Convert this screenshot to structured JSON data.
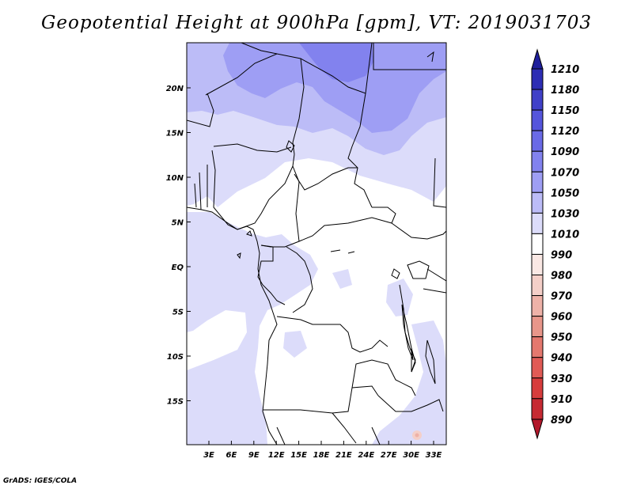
{
  "title": "Geopotential Height at 900hPa [gpm], VT: 2019031703",
  "credit": "GrADS: IGES/COLA",
  "map": {
    "lon_labels": [
      "3E",
      "6E",
      "9E",
      "12E",
      "15E",
      "18E",
      "21E",
      "24E",
      "27E",
      "30E",
      "33E"
    ],
    "lat_labels": [
      "20N",
      "15N",
      "10N",
      "5N",
      "EQ",
      "5S",
      "10S",
      "15S"
    ]
  },
  "colorbar": {
    "levels": [
      "890",
      "910",
      "930",
      "940",
      "950",
      "960",
      "970",
      "980",
      "990",
      "1010",
      "1030",
      "1050",
      "1070",
      "1090",
      "1120",
      "1150",
      "1180",
      "1210"
    ],
    "colors": [
      "#b2182b",
      "#c62a32",
      "#d73c3c",
      "#e05a55",
      "#e4786e",
      "#e8968a",
      "#eeb2a8",
      "#f4cfc8",
      "#fae8e4",
      "#ffffff",
      "#dcdcfa",
      "#bcbcf7",
      "#9e9ef4",
      "#8282ee",
      "#6a6ae6",
      "#5555dc",
      "#4040c8",
      "#2d2db4",
      "#1f1f9c"
    ]
  }
}
